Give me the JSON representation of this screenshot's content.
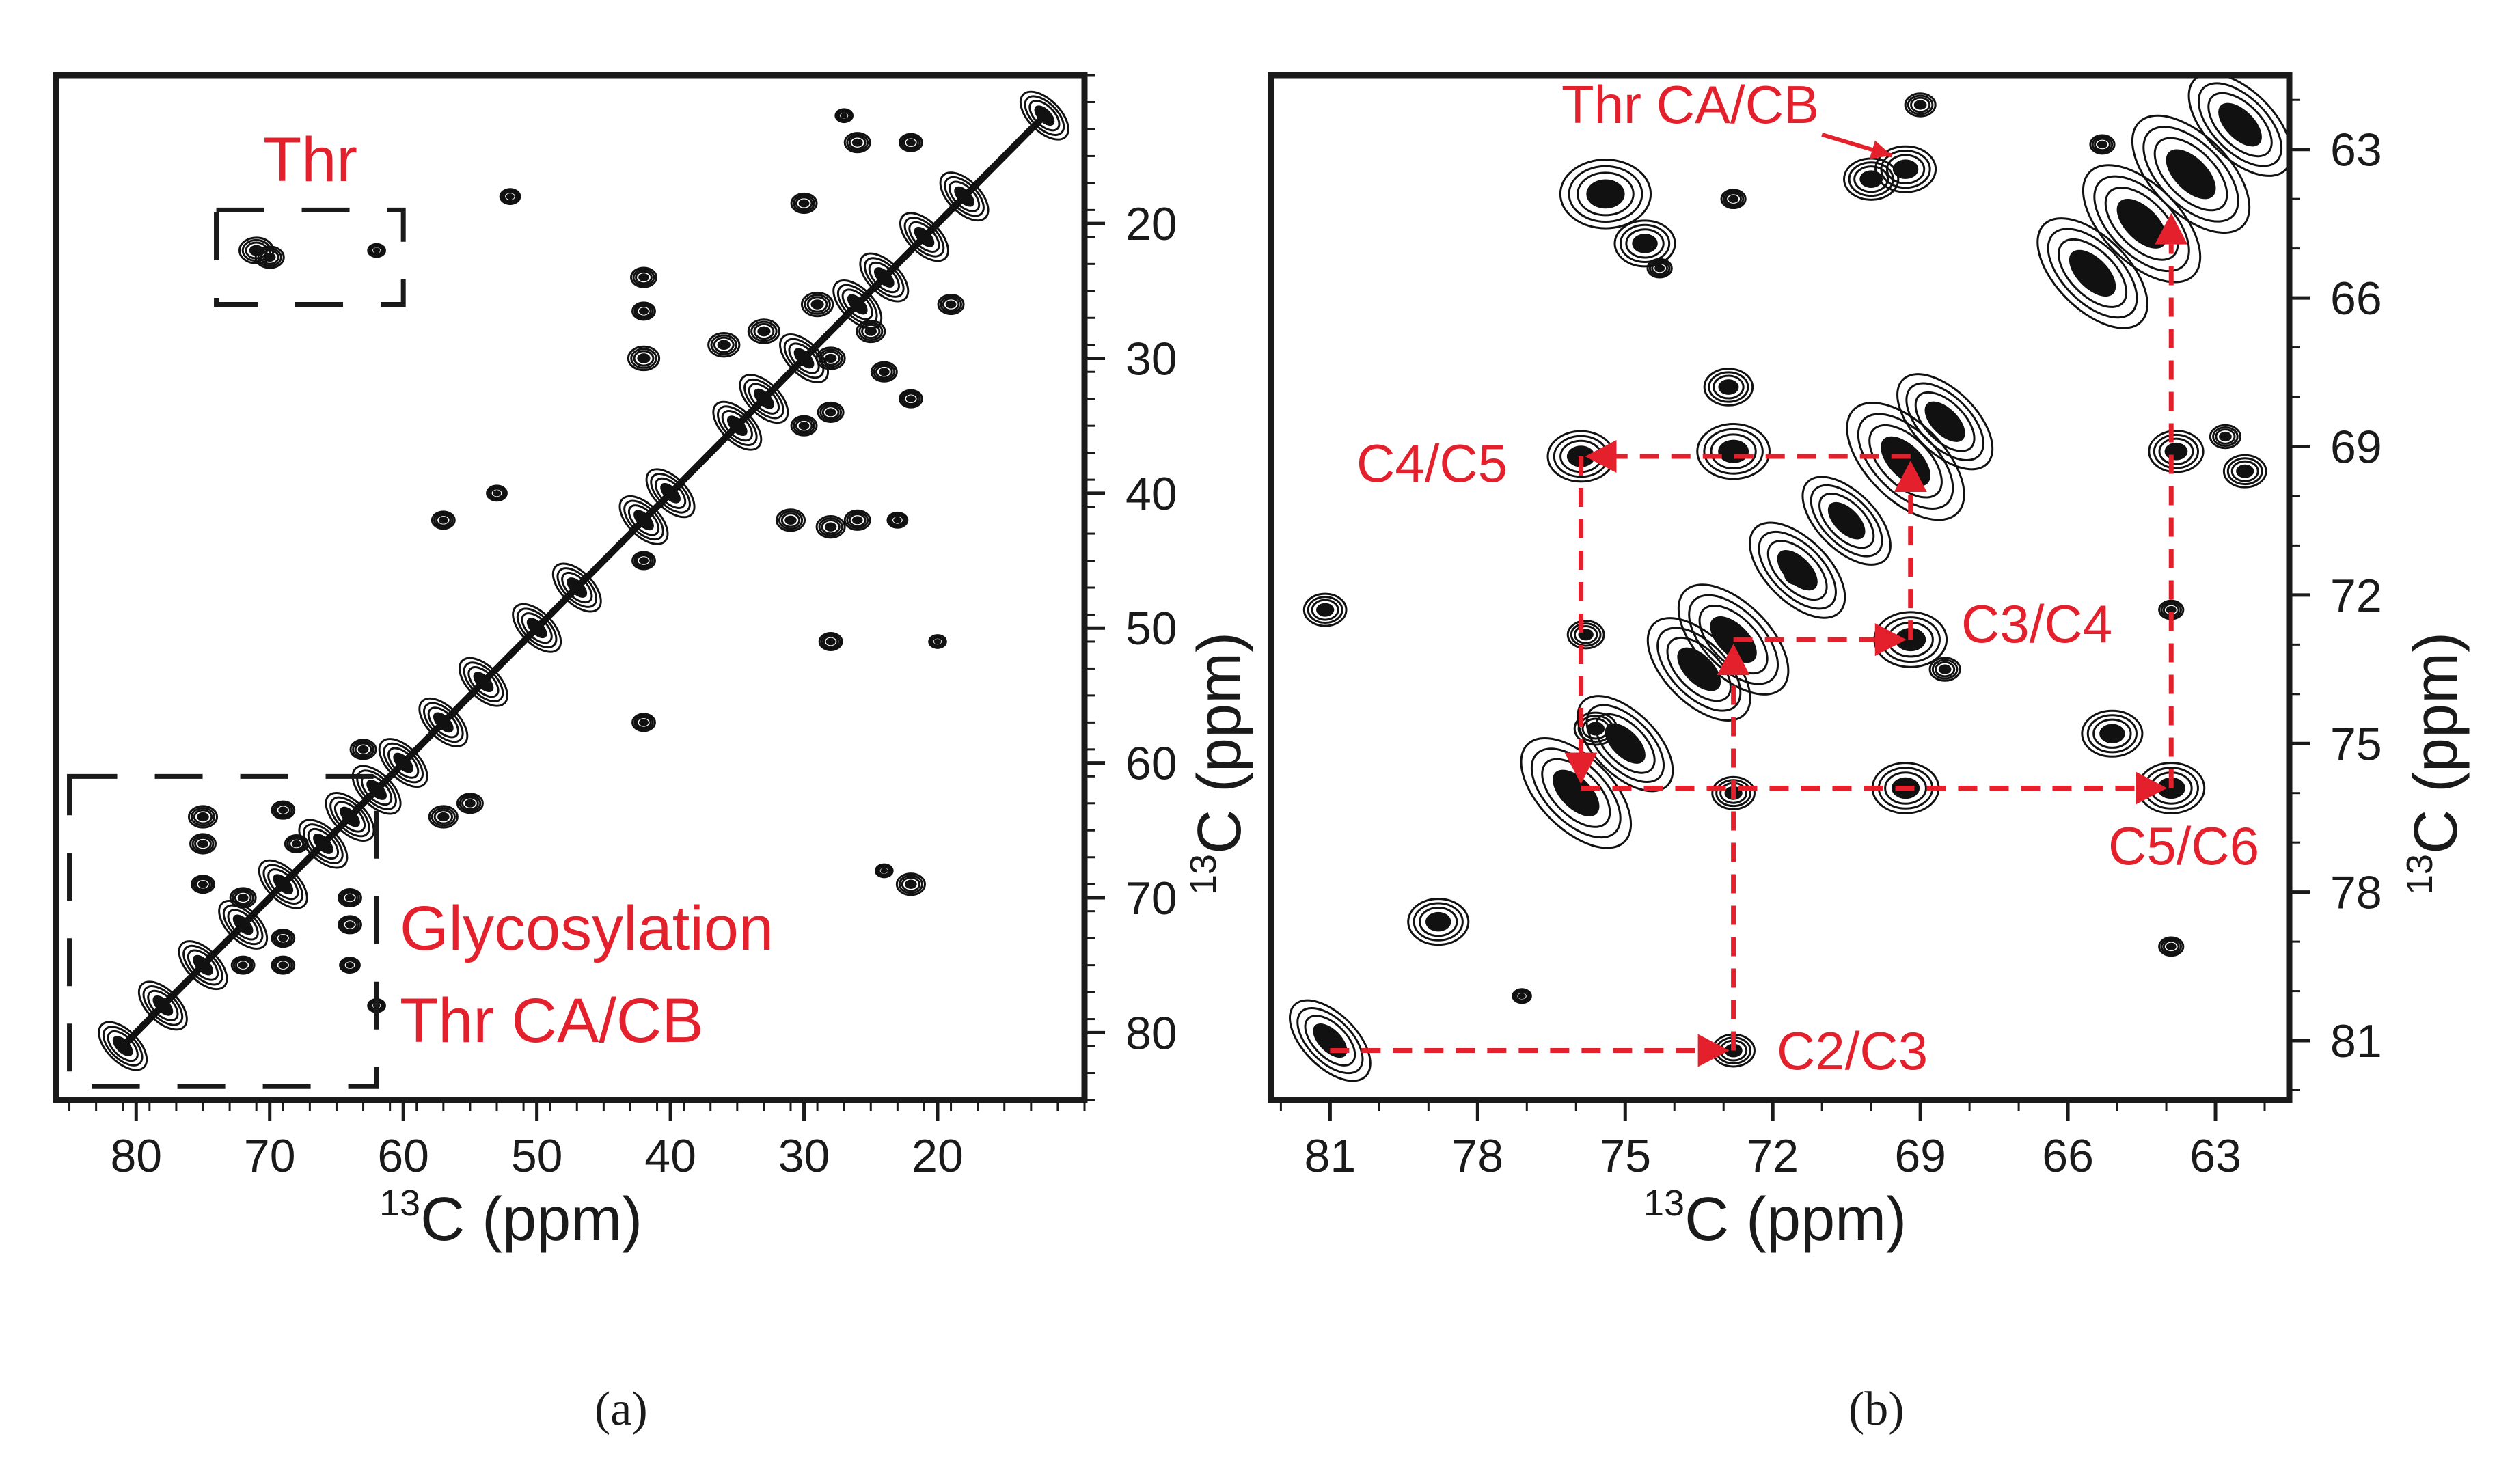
{
  "chart_data": [
    {
      "panel": "a",
      "type": "scatter",
      "subtype": "2D 13C-13C NMR correlation spectrum (contour plot)",
      "caption": "(a)",
      "xlabel": {
        "sup": "13",
        "main": "C (ppm)"
      },
      "ylabel": {
        "sup": "13",
        "main": "C (ppm)"
      },
      "xlim": [
        86,
        9
      ],
      "ylim": [
        9,
        85
      ],
      "x_ticks": [
        80,
        70,
        60,
        50,
        40,
        30,
        20
      ],
      "y_ticks": [
        20,
        30,
        40,
        50,
        60,
        70,
        80
      ],
      "annotations": [
        {
          "text": "Thr",
          "region_x": [
            74,
            60
          ],
          "region_y": [
            19,
            26
          ]
        },
        {
          "text": "Glycosylation",
          "region_x": [
            85,
            62
          ],
          "region_y": [
            61,
            84
          ]
        },
        {
          "text": "Thr CA/CB",
          "region_x": [
            85,
            62
          ],
          "region_y": [
            61,
            84
          ]
        }
      ],
      "diagonal_x": [
        12,
        18,
        21,
        24,
        26,
        30,
        33,
        35,
        40,
        42,
        47,
        50,
        54,
        57,
        60,
        62,
        64,
        66,
        69,
        72,
        75,
        78,
        81
      ],
      "cross_peaks": [
        {
          "x": 71,
          "y": 22,
          "s": 1.2
        },
        {
          "x": 70,
          "y": 22.5,
          "s": 1.0
        },
        {
          "x": 62,
          "y": 22,
          "s": 0.6
        },
        {
          "x": 52,
          "y": 18,
          "s": 0.7
        },
        {
          "x": 30,
          "y": 18.5,
          "s": 0.9
        },
        {
          "x": 26,
          "y": 14,
          "s": 0.9
        },
        {
          "x": 22,
          "y": 14,
          "s": 0.8
        },
        {
          "x": 27,
          "y": 12,
          "s": 0.6
        },
        {
          "x": 19,
          "y": 26,
          "s": 0.9
        },
        {
          "x": 42,
          "y": 24,
          "s": 0.9
        },
        {
          "x": 42,
          "y": 26.5,
          "s": 0.8
        },
        {
          "x": 42,
          "y": 30,
          "s": 1.1
        },
        {
          "x": 36,
          "y": 29,
          "s": 1.1
        },
        {
          "x": 33,
          "y": 28,
          "s": 1.1
        },
        {
          "x": 29,
          "y": 26,
          "s": 1.1
        },
        {
          "x": 28,
          "y": 30,
          "s": 1.0
        },
        {
          "x": 25,
          "y": 28,
          "s": 1.0
        },
        {
          "x": 24,
          "y": 31,
          "s": 0.9
        },
        {
          "x": 22,
          "y": 33,
          "s": 0.8
        },
        {
          "x": 30,
          "y": 35,
          "s": 0.9
        },
        {
          "x": 28,
          "y": 34,
          "s": 0.9
        },
        {
          "x": 31,
          "y": 42,
          "s": 1.0
        },
        {
          "x": 28,
          "y": 42.5,
          "s": 1.0
        },
        {
          "x": 26,
          "y": 42,
          "s": 0.9
        },
        {
          "x": 23,
          "y": 42,
          "s": 0.7
        },
        {
          "x": 57,
          "y": 42,
          "s": 0.8
        },
        {
          "x": 53,
          "y": 40,
          "s": 0.7
        },
        {
          "x": 42,
          "y": 45,
          "s": 0.8
        },
        {
          "x": 28,
          "y": 51,
          "s": 0.8
        },
        {
          "x": 42,
          "y": 57,
          "s": 0.8
        },
        {
          "x": 20,
          "y": 51,
          "s": 0.6
        },
        {
          "x": 63,
          "y": 59,
          "s": 0.9
        },
        {
          "x": 57,
          "y": 64,
          "s": 1.0
        },
        {
          "x": 55,
          "y": 63,
          "s": 0.9
        },
        {
          "x": 75,
          "y": 64,
          "s": 1.0
        },
        {
          "x": 75,
          "y": 66,
          "s": 0.9
        },
        {
          "x": 69,
          "y": 63.5,
          "s": 0.8
        },
        {
          "x": 68,
          "y": 66,
          "s": 0.8
        },
        {
          "x": 75,
          "y": 69,
          "s": 0.8
        },
        {
          "x": 72,
          "y": 70,
          "s": 0.9
        },
        {
          "x": 69,
          "y": 73,
          "s": 0.8
        },
        {
          "x": 64,
          "y": 70,
          "s": 0.8
        },
        {
          "x": 64,
          "y": 72,
          "s": 0.8
        },
        {
          "x": 69,
          "y": 75,
          "s": 0.8
        },
        {
          "x": 64,
          "y": 75,
          "s": 0.7
        },
        {
          "x": 72,
          "y": 75,
          "s": 0.8
        },
        {
          "x": 62,
          "y": 78,
          "s": 0.6
        },
        {
          "x": 22,
          "y": 69,
          "s": 1.0
        },
        {
          "x": 24,
          "y": 68,
          "s": 0.6
        }
      ]
    },
    {
      "panel": "b",
      "type": "scatter",
      "subtype": "2D 13C-13C NMR correlation spectrum, expanded carbohydrate region (contour plot)",
      "caption": "(b)",
      "xlabel": {
        "sup": "13",
        "main": "C (ppm)"
      },
      "ylabel": {
        "sup": "13",
        "main": "C (ppm)"
      },
      "xlim": [
        82.2,
        61.5
      ],
      "ylim": [
        61.5,
        82.2
      ],
      "x_ticks": [
        81,
        78,
        75,
        72,
        69,
        66,
        63
      ],
      "y_ticks": [
        63,
        66,
        69,
        72,
        75,
        78,
        81
      ],
      "annotations": [
        {
          "text": "Thr CA/CB",
          "points": [
            [
              69.3,
              63.4
            ],
            [
              71.0,
              62.7
            ]
          ]
        },
        {
          "text": "C4/C5",
          "point": [
            75.9,
            69.2
          ]
        },
        {
          "text": "C3/C4",
          "point": [
            69.2,
            72.9
          ]
        },
        {
          "text": "C5/C6",
          "point": [
            63.9,
            75.9
          ]
        },
        {
          "text": "C2/C3",
          "point": [
            72.8,
            81.2
          ]
        }
      ],
      "assignment_path": [
        [
          81.0,
          81.2
        ],
        [
          72.8,
          81.2
        ],
        [
          72.8,
          72.9
        ],
        [
          69.2,
          72.9
        ],
        [
          69.2,
          69.2
        ],
        [
          75.9,
          69.2
        ],
        [
          75.9,
          75.9
        ],
        [
          63.9,
          75.9
        ],
        [
          63.9,
          64.2
        ]
      ],
      "diagonal_peaks": [
        {
          "x": 81,
          "y": 81,
          "s": 1.1
        },
        {
          "x": 76,
          "y": 76,
          "s": 1.5
        },
        {
          "x": 75,
          "y": 75,
          "s": 1.3
        },
        {
          "x": 73.5,
          "y": 73.5,
          "s": 1.4
        },
        {
          "x": 72.8,
          "y": 72.9,
          "s": 1.5
        },
        {
          "x": 71.5,
          "y": 71.5,
          "s": 1.3
        },
        {
          "x": 70.5,
          "y": 70.5,
          "s": 1.2
        },
        {
          "x": 69.3,
          "y": 69.3,
          "s": 1.6
        },
        {
          "x": 68.5,
          "y": 68.5,
          "s": 1.3
        },
        {
          "x": 65.5,
          "y": 65.5,
          "s": 1.5
        },
        {
          "x": 64.5,
          "y": 64.5,
          "s": 1.6
        },
        {
          "x": 63.5,
          "y": 63.5,
          "s": 1.6
        },
        {
          "x": 62.5,
          "y": 62.5,
          "s": 1.4
        }
      ],
      "cross_peaks": [
        {
          "x": 75.9,
          "y": 69.2,
          "s": 1.1
        },
        {
          "x": 72.8,
          "y": 69.1,
          "s": 1.2
        },
        {
          "x": 72.9,
          "y": 67.8,
          "s": 0.8
        },
        {
          "x": 69.2,
          "y": 72.9,
          "s": 1.2
        },
        {
          "x": 72.8,
          "y": 76.0,
          "s": 0.7
        },
        {
          "x": 69.3,
          "y": 75.9,
          "s": 1.1
        },
        {
          "x": 63.9,
          "y": 75.9,
          "s": 1.1
        },
        {
          "x": 65.1,
          "y": 74.8,
          "s": 1.0
        },
        {
          "x": 72.8,
          "y": 81.2,
          "s": 0.7
        },
        {
          "x": 78.8,
          "y": 78.6,
          "s": 1.0
        },
        {
          "x": 75.6,
          "y": 74.7,
          "s": 0.7
        },
        {
          "x": 75.8,
          "y": 72.8,
          "s": 0.6
        },
        {
          "x": 68.5,
          "y": 73.5,
          "s": 0.5
        },
        {
          "x": 81.1,
          "y": 72.3,
          "s": 0.7
        },
        {
          "x": 63.8,
          "y": 69.1,
          "s": 0.9
        },
        {
          "x": 62.4,
          "y": 69.5,
          "s": 0.7
        },
        {
          "x": 62.8,
          "y": 68.8,
          "s": 0.5
        },
        {
          "x": 75.4,
          "y": 63.9,
          "s": 1.5
        },
        {
          "x": 74.6,
          "y": 64.9,
          "s": 1.0
        },
        {
          "x": 69.3,
          "y": 63.4,
          "s": 1.0
        },
        {
          "x": 70.0,
          "y": 63.6,
          "s": 0.9
        },
        {
          "x": 69.0,
          "y": 62.1,
          "s": 0.5
        },
        {
          "x": 72.8,
          "y": 64.0,
          "s": 0.4
        },
        {
          "x": 74.3,
          "y": 65.4,
          "s": 0.4
        },
        {
          "x": 63.9,
          "y": 72.3,
          "s": 0.4
        },
        {
          "x": 63.9,
          "y": 79.1,
          "s": 0.4
        },
        {
          "x": 77.1,
          "y": 80.1,
          "s": 0.3
        },
        {
          "x": 71.5,
          "y": 71.6,
          "s": 0.4
        },
        {
          "x": 65.3,
          "y": 62.9,
          "s": 0.4
        }
      ]
    }
  ]
}
